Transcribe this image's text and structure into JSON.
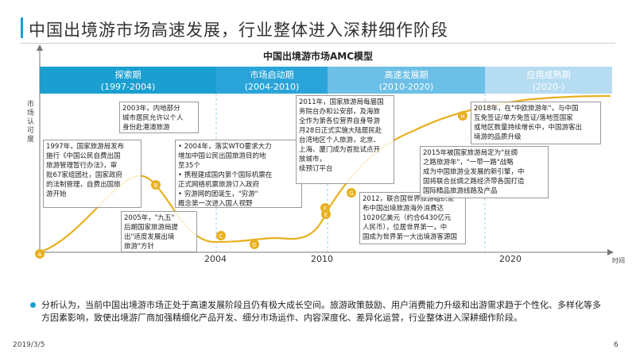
{
  "page_title": "中国出境游市场高速发展，行业整体进入深耕细作阶段",
  "chart_data": {
    "type": "line",
    "title": "中国出境游市场AMC模型",
    "xlabel": "时间",
    "ylabel": "市场认可度",
    "x_ticks": [
      "2004",
      "2010",
      "2020"
    ],
    "phases": [
      {
        "name": "探索期",
        "years": "(1997-2004)",
        "start": 1997,
        "end": 2004,
        "color": "#1a9fd0"
      },
      {
        "name": "市场启动期",
        "years": "(2004-2010)",
        "start": 2004,
        "end": 2010,
        "color": "#2aa4d8"
      },
      {
        "name": "高速发展期",
        "years": "(2010-2020)",
        "start": 2010,
        "end": 2020,
        "color": "#6cbfe6"
      },
      {
        "name": "应用成熟期",
        "years": "(2020-)",
        "start": 2020,
        "end": 2026,
        "color": "#b6dcf1"
      }
    ],
    "curve_color": "#e8b020",
    "points": [
      {
        "label": "A"
      },
      {
        "label": "B"
      },
      {
        "label": "C"
      },
      {
        "label": "D"
      },
      {
        "label": "E"
      },
      {
        "label": "F"
      },
      {
        "label": "G"
      },
      {
        "label": "H"
      }
    ]
  },
  "annotations": [
    {
      "rows": [
        "1997年，国家旅游局发布",
        "施行《中国公民自费出国",
        "旅游管理暂行办法》，审",
        "批67家组团社，国家政府",
        "的法制管理，自费出国旅",
        "游开始"
      ]
    },
    {
      "rows": [
        "2003年，内地部分",
        "城市居民允许以个人",
        "身份赴港澳旅游"
      ]
    },
    {
      "rows": [
        "2005年，\"九五\"",
        "后期国家旅游局提",
        "出\"适度发展出境",
        "旅游\"方针"
      ]
    },
    {
      "rows": [
        "• 2004年，落实WTO要求大力",
        "增加中国公民出国旅游目的地",
        "至35个",
        "• 携程建成国内第个国际机票在",
        "正式网络机票旅游订入政府",
        "• 穷游网的团诞生，\"穷游\"",
        "概念第一次进入国人视野"
      ]
    },
    {
      "rows": [
        "2011年，国家旅游局每届国",
        "务院台办和公安部，及海旅",
        "全作为第各位营界自身导游",
        "月28日正式实施大陆居民赴",
        "台湾地区个人旅游，北京、",
        "上海、厦门成为首批试点开",
        "放城市，",
        "续预订平台"
      ]
    },
    {
      "rows": [
        "2012，联合国世界旅游组织发",
        "布中国出境旅游海外消费达",
        "1020亿美元（约合6430亿元",
        "人民币），位居世界第一，中",
        "国成为世界第一大出境游客源国"
      ]
    },
    {
      "rows": [
        "2015年被国家旅游局定为\"丝绸",
        "之路旅游年\"，\"一带一路\"战略",
        "成为中国旅游业发展的新引擎，中",
        "国将联合丝绸之路经济带各国打造",
        "国际精品旅游线路及产品"
      ]
    },
    {
      "rows": [
        "2018年，在\"中欧旅游年\"，与中国",
        "互免签证/单方免签证/落地签国家",
        "或地区数量持续增长中，中国游客出",
        "境游的品质升级"
      ]
    }
  ],
  "summary": "分析认为，当前中国出境游市场正处于高速发展阶段且仍有极大成长空间。旅游政策鼓励、用户消费能力升级和出游需求趋于个性化、多样化等多方因素影响，致使出境游厂商加强精细化产品开发、细分市场运作、内容深度化、差异化运营，行业整体进入深耕细作阶段。",
  "footer": {
    "date": "2019/3/5",
    "page": "6"
  }
}
